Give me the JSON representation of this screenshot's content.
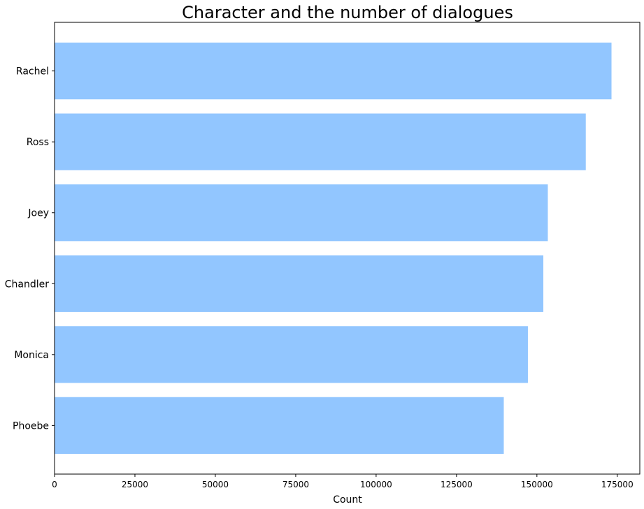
{
  "chart_data": {
    "type": "bar",
    "orientation": "horizontal",
    "title": "Character and the number of dialogues",
    "xlabel": "Count",
    "ylabel": "",
    "categories": [
      "Rachel",
      "Ross",
      "Joey",
      "Chandler",
      "Monica",
      "Phoebe"
    ],
    "values": [
      173200,
      165200,
      153400,
      152000,
      147200,
      139700
    ],
    "xlim": [
      0,
      182000
    ],
    "xticks": [
      0,
      25000,
      50000,
      75000,
      100000,
      125000,
      150000,
      175000
    ],
    "xtick_labels": [
      "0",
      "25000",
      "50000",
      "75000",
      "100000",
      "125000",
      "150000",
      "175000"
    ],
    "bar_color": "#92c6ff",
    "grid": false
  }
}
